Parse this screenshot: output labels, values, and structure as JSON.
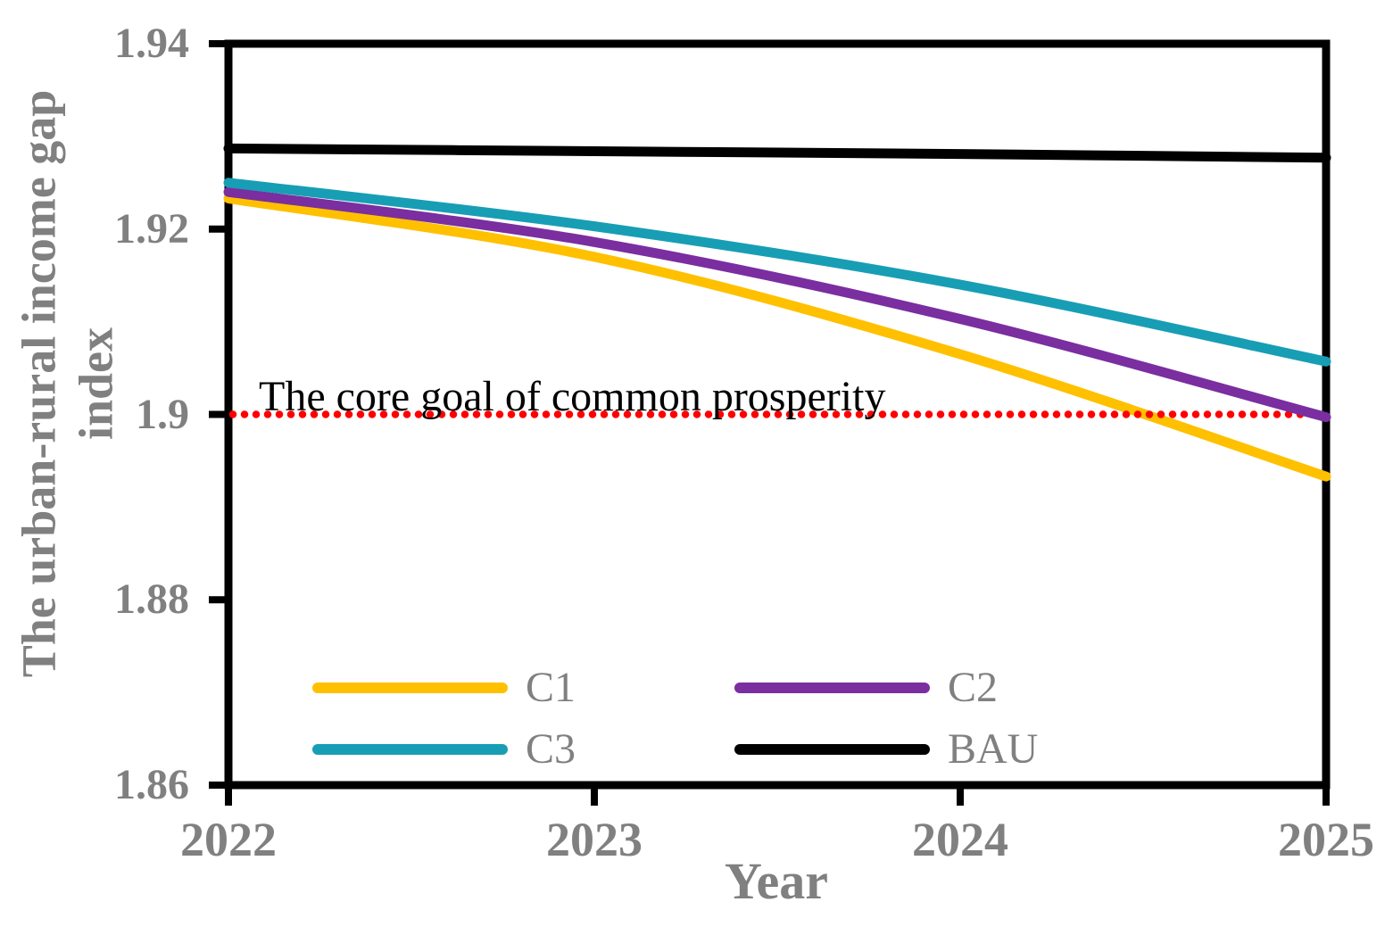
{
  "figure": {
    "background_color": "#FFFFFF",
    "text_color": "#808080",
    "axis_color": "#000000"
  },
  "chart_data": {
    "type": "line",
    "title": "",
    "xlabel": "Year",
    "ylabel": "The urban-rural income gap index",
    "ylabel_lines": [
      "The urban-rural income gap",
      "index"
    ],
    "x": [
      2022,
      2023,
      2024,
      2025
    ],
    "xtick_labels": [
      "2022",
      "2023",
      "2024",
      "2025"
    ],
    "xlim": [
      2022,
      2025
    ],
    "ylim": [
      1.86,
      1.94
    ],
    "yticks": [
      1.86,
      1.88,
      1.9,
      1.92,
      1.94
    ],
    "ytick_labels": [
      "1.86",
      "1.88",
      "1.9",
      "1.92",
      "1.94"
    ],
    "grid": false,
    "series": [
      {
        "name": "C1",
        "color": "#FFC000",
        "values": [
          1.9233,
          1.917,
          1.9065,
          1.8933
        ]
      },
      {
        "name": "C2",
        "color": "#7A2EA0",
        "values": [
          1.924,
          1.9186,
          1.9103,
          1.8997
        ]
      },
      {
        "name": "C3",
        "color": "#189EB4",
        "values": [
          1.925,
          1.9203,
          1.914,
          1.9057
        ]
      },
      {
        "name": "BAU",
        "color": "#000000",
        "values": [
          1.9287,
          1.9284,
          1.9281,
          1.9277
        ]
      }
    ],
    "reference_line": {
      "value": 1.9,
      "color": "#FF0000",
      "style": "dotted",
      "label": "The core goal of common prosperity"
    },
    "legend": {
      "position": "inside-bottom-left",
      "columns": 2,
      "entries": [
        "C1",
        "C2",
        "C3",
        "BAU"
      ]
    }
  }
}
